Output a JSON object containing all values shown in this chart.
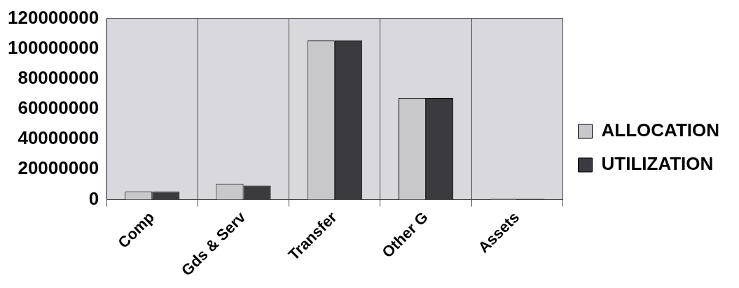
{
  "chart_data": {
    "type": "bar",
    "categories": [
      "Comp",
      "Gds & Serv",
      "Transfer",
      "Other G",
      "Assets"
    ],
    "series": [
      {
        "name": "ALLOCATION",
        "color": "#c8c8cc",
        "values": [
          5200000,
          10500000,
          105400000,
          67400000,
          400000
        ]
      },
      {
        "name": "UTILIZATION",
        "color": "#3a3a40",
        "values": [
          5200000,
          9300000,
          105400000,
          67400000,
          400000
        ]
      }
    ],
    "ylim": [
      0,
      120000000
    ],
    "yticks": [
      0,
      20000000,
      40000000,
      60000000,
      80000000,
      100000000,
      120000000
    ],
    "grid": "x",
    "legend": "right"
  }
}
